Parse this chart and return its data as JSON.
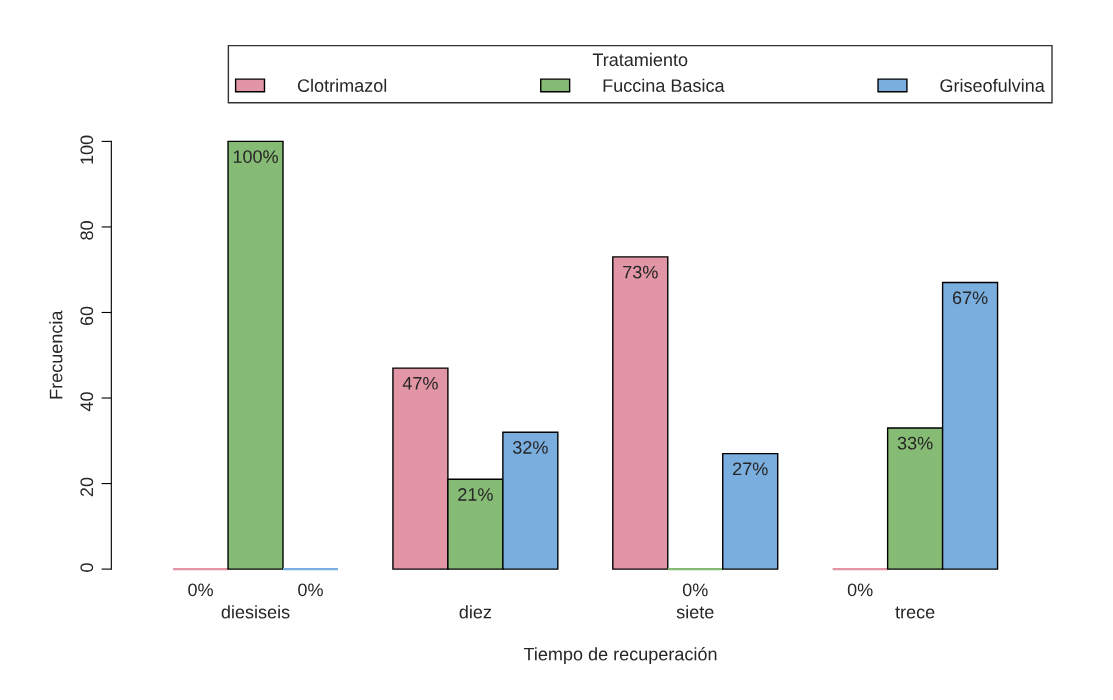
{
  "chart_data": {
    "type": "bar",
    "xlabel": "Tiempo de recuperación",
    "ylabel": "Frecuencia",
    "legend_title": "Tratamiento",
    "legend": "top",
    "categories": [
      "diesiseis",
      "diez",
      "siete",
      "trece"
    ],
    "series": [
      {
        "name": "Clotrimazol",
        "color": "#e295a5",
        "values": [
          0,
          47,
          73,
          0
        ],
        "value_labels": [
          "0%",
          "47%",
          "73%",
          "0%"
        ]
      },
      {
        "name": "Fuccina Basica",
        "color": "#86bb75",
        "values": [
          100,
          21,
          0,
          33
        ],
        "value_labels": [
          "100%",
          "21%",
          "0%",
          "33%"
        ]
      },
      {
        "name": "Griseofulvina",
        "color": "#7aaedf",
        "values": [
          0,
          32,
          27,
          67
        ],
        "value_labels": [
          "0%",
          "32%",
          "27%",
          "67%"
        ]
      }
    ],
    "ylim": [
      0,
      100
    ],
    "yticks": [
      0,
      20,
      40,
      60,
      80,
      100
    ],
    "grid": false
  }
}
